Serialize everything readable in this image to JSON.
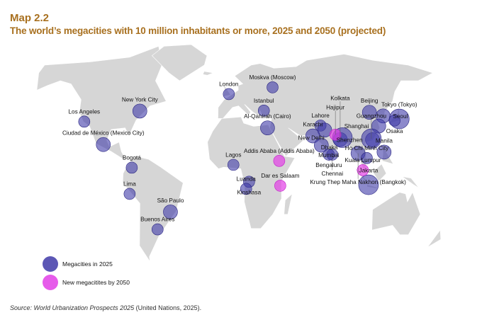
{
  "header": {
    "kicker": "Map 2.2",
    "title": "The world’s megacities with 10 million inhabitants or more, 2025 and 2050 (projected)"
  },
  "colors": {
    "land": "#d6d6d6",
    "megacity_2025": "#3f3aa8",
    "new_2050": "#e23ee6"
  },
  "legend": {
    "items": [
      {
        "label": "Megacities in 2025",
        "type": "2025"
      },
      {
        "label": "New megacitites by 2050",
        "type": "2050"
      }
    ]
  },
  "source": {
    "italic": "Source: World Urbanization Prospects 2025",
    "rest": " (United Nations, 2025)."
  },
  "cities": [
    {
      "name": "Los Angeles",
      "lat": 34.0,
      "lon": -118.2,
      "type": "2025",
      "size": "small"
    },
    {
      "name": "New York City",
      "lat": 40.7,
      "lon": -74.0,
      "type": "2025",
      "size": "medium"
    },
    {
      "name": "Ciudad de México (Mexico City)",
      "lat": 19.4,
      "lon": -99.1,
      "type": "2025",
      "size": "medium"
    },
    {
      "name": "Bogotá",
      "lat": 4.7,
      "lon": -74.1,
      "type": "2025",
      "size": "small"
    },
    {
      "name": "Lima",
      "lat": -12.0,
      "lon": -77.0,
      "type": "2025",
      "size": "small"
    },
    {
      "name": "São Paulo",
      "lat": -23.5,
      "lon": -46.6,
      "type": "2025",
      "size": "medium"
    },
    {
      "name": "Buenos Aires",
      "lat": -34.6,
      "lon": -58.4,
      "type": "2025",
      "size": "small"
    },
    {
      "name": "London",
      "lat": 51.5,
      "lon": -0.1,
      "type": "2025",
      "size": "small"
    },
    {
      "name": "Moskva (Moscow)",
      "lat": 55.8,
      "lon": 37.6,
      "type": "2025",
      "size": "small"
    },
    {
      "name": "Istanbul",
      "lat": 41.0,
      "lon": 29.0,
      "type": "2025",
      "size": "small"
    },
    {
      "name": "Al-Qahirah (Cairo)",
      "lat": 30.0,
      "lon": 31.2,
      "type": "2025",
      "size": "medium"
    },
    {
      "name": "Lagos",
      "lat": 6.5,
      "lon": 3.4,
      "type": "2025",
      "size": "small"
    },
    {
      "name": "Kinshasa",
      "lat": -4.3,
      "lon": 15.3,
      "type": "2025",
      "size": "small"
    },
    {
      "name": "Luanda",
      "lat": -8.8,
      "lon": 13.2,
      "type": "2025",
      "size": "small"
    },
    {
      "name": "Lahore",
      "lat": 31.5,
      "lon": 74.3,
      "type": "2025",
      "size": "small"
    },
    {
      "name": "New Delhi",
      "lat": 28.6,
      "lon": 77.2,
      "type": "2025",
      "size": "medium"
    },
    {
      "name": "Karachi",
      "lat": 24.9,
      "lon": 67.0,
      "type": "2025",
      "size": "medium"
    },
    {
      "name": "Mumbai",
      "lat": 19.0,
      "lon": 72.8,
      "type": "2025",
      "size": "medium"
    },
    {
      "name": "Chennai",
      "lat": 13.0,
      "lon": 80.3,
      "type": "2025",
      "size": "small"
    },
    {
      "name": "Bengaluru",
      "lat": 13.0,
      "lon": 77.6,
      "type": "2025",
      "size": "small"
    },
    {
      "name": "Kolkata",
      "lat": 22.6,
      "lon": 88.4,
      "type": "2025",
      "size": "medium"
    },
    {
      "name": "Dhaka",
      "lat": 23.8,
      "lon": 90.4,
      "type": "2025",
      "size": "large"
    },
    {
      "name": "Krung Thep Maha Nakhon (Bangkok)",
      "lat": 13.8,
      "lon": 100.5,
      "type": "2025",
      "size": "medium"
    },
    {
      "name": "Ho Chi Minh City",
      "lat": 10.8,
      "lon": 106.6,
      "type": "2025",
      "size": "small"
    },
    {
      "name": "Manila",
      "lat": 14.6,
      "lon": 121.0,
      "type": "2025",
      "size": "medium"
    },
    {
      "name": "Beijing",
      "lat": 39.9,
      "lon": 116.4,
      "type": "2025",
      "size": "medium"
    },
    {
      "name": "Seoul",
      "lat": 37.6,
      "lon": 127.0,
      "type": "2025",
      "size": "medium"
    },
    {
      "name": "Tokyo (Tokyo)",
      "lat": 35.7,
      "lon": 139.7,
      "type": "2025",
      "size": "large"
    },
    {
      "name": "Shanghai",
      "lat": 31.2,
      "lon": 121.5,
      "type": "2025",
      "size": "medium"
    },
    {
      "name": "Shenzhen",
      "lat": 22.5,
      "lon": 114.1,
      "type": "2025",
      "size": "medium"
    },
    {
      "name": "Guangzhou",
      "lat": 23.1,
      "lon": 113.3,
      "type": "2025",
      "size": "large"
    },
    {
      "name": "Osaka",
      "lat": 34.7,
      "lon": 135.5,
      "type": "2025",
      "size": "small"
    },
    {
      "name": "Jakarta",
      "lat": -6.2,
      "lon": 106.8,
      "type": "2025",
      "size": "large"
    },
    {
      "name": "Addis Ababa (Addis Ababa)",
      "lat": 9.0,
      "lon": 38.7,
      "type": "2050",
      "size": "small"
    },
    {
      "name": "Dar es Salaam",
      "lat": -6.8,
      "lon": 39.3,
      "type": "2050",
      "size": "small"
    },
    {
      "name": "Kuala Lumpur",
      "lat": 3.1,
      "lon": 101.7,
      "type": "2050",
      "size": "small"
    },
    {
      "name": "Hajipur",
      "lat": 25.7,
      "lon": 85.2,
      "type": "2050",
      "size": "small"
    }
  ]
}
